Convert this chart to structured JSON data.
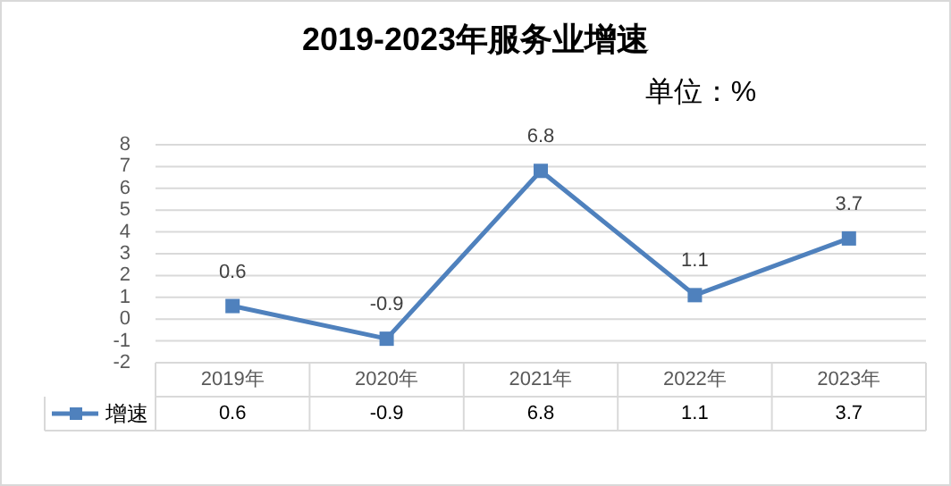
{
  "chart_data": {
    "type": "line",
    "title": "2019-2023年服务业增速",
    "annotations": [
      "单位：%",
      "0.6",
      "-0.9",
      "6.8",
      "1.1",
      "3.7"
    ],
    "categories": [
      "2019年",
      "2020年",
      "2021年",
      "2022年",
      "2023年"
    ],
    "series": [
      {
        "name": "增速",
        "color": "#4f81bd",
        "values": [
          0.6,
          -0.9,
          6.8,
          1.1,
          3.7
        ]
      }
    ],
    "ylim": [
      -2,
      8
    ],
    "yticks": [
      -2,
      -1,
      0,
      1,
      2,
      3,
      4,
      5,
      6,
      7,
      8
    ],
    "grid": "y",
    "marker": "square",
    "line_style": "solid",
    "data_labels": true,
    "legend": "bottom left"
  }
}
